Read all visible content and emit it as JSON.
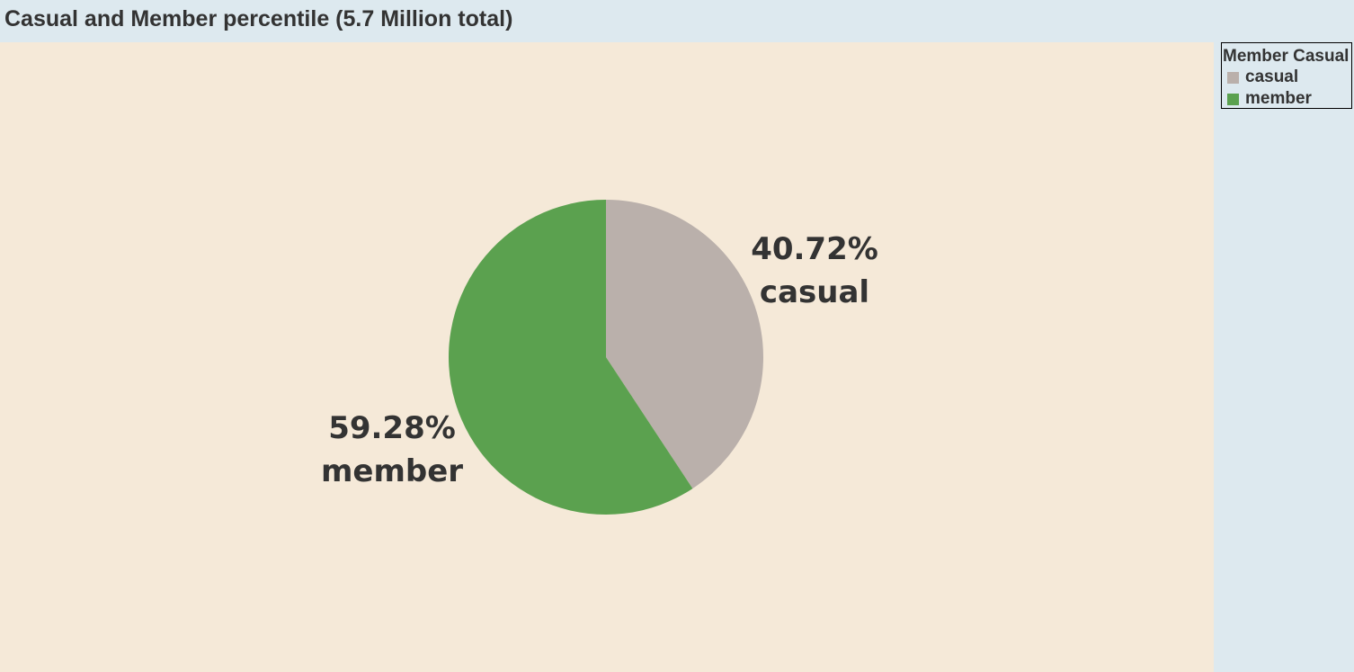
{
  "header": {
    "title": "Casual and Member percentile (5.7 Million total)"
  },
  "legend": {
    "title": "Member Casual",
    "items": [
      {
        "label": "casual",
        "color": "#bab0ab"
      },
      {
        "label": "member",
        "color": "#5ba14f"
      }
    ]
  },
  "colors": {
    "plot_background": "#f5e9d8",
    "panel_background": "#dde9ef",
    "text": "#333333"
  },
  "chart_data": {
    "type": "pie",
    "title": "Casual and Member percentile (5.7 Million total)",
    "legend_title": "Member Casual",
    "legend_position": "top-right",
    "start_angle": "12 o'clock, clockwise",
    "slices": [
      {
        "name": "casual",
        "value": 40.72,
        "label_value": "40.72%",
        "color": "#bab0ab"
      },
      {
        "name": "member",
        "value": 59.28,
        "label_value": "59.28%",
        "color": "#5ba14f"
      }
    ]
  }
}
